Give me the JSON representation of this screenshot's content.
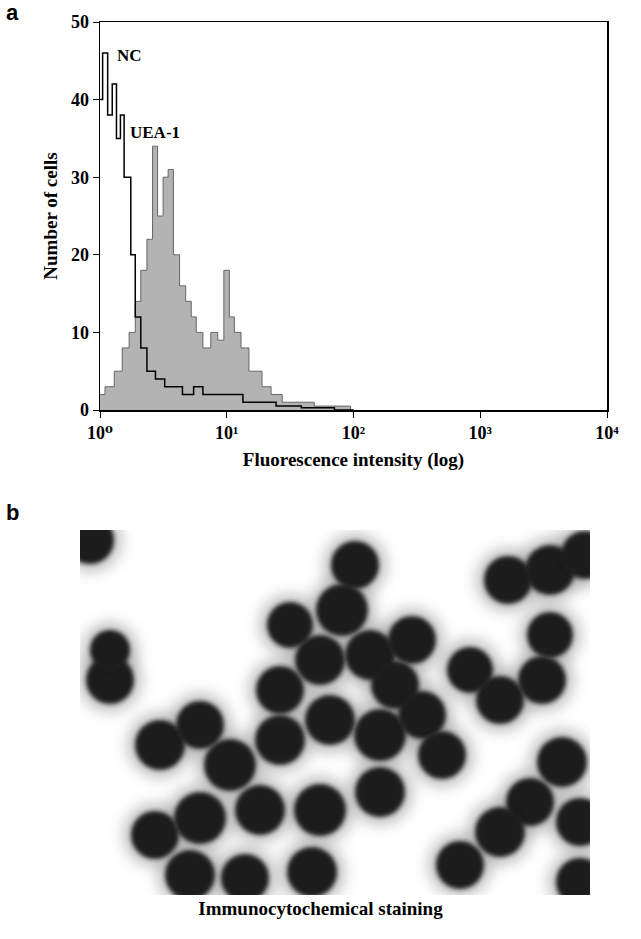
{
  "chart_data": {
    "type": "line",
    "xlabel": "Fluorescence intensity (log)",
    "ylabel": "Number of cells",
    "log": "x",
    "grid": false,
    "xlim": [
      1,
      10000
    ],
    "xticks": [
      {
        "value": 1,
        "label": "10⁰"
      },
      {
        "value": 10,
        "label": "10¹"
      },
      {
        "value": 100,
        "label": "10²"
      },
      {
        "value": 1000,
        "label": "10³"
      },
      {
        "value": 10000,
        "label": "10⁴"
      }
    ],
    "ylim": [
      0,
      50
    ],
    "yticks": [
      0,
      10,
      20,
      30,
      40,
      50
    ],
    "series": [
      {
        "name": "NC",
        "type": "line",
        "color": "#000000",
        "x": [
          1,
          1.1,
          1.2,
          1.3,
          1.4,
          1.5,
          1.6,
          1.7,
          1.8,
          2,
          2.2,
          2.5,
          3,
          3.5,
          4,
          5,
          6,
          7,
          8,
          10,
          12,
          15,
          20,
          30,
          50,
          100
        ],
        "values": [
          40,
          46,
          38,
          42,
          35,
          38,
          30,
          30,
          20,
          12,
          8,
          5,
          4,
          3,
          3,
          2,
          3,
          2,
          2,
          2,
          2,
          1,
          1,
          0.5,
          0.3,
          0
        ]
      },
      {
        "name": "UEA-1",
        "type": "area",
        "color": "#999999",
        "x": [
          1,
          1.2,
          1.4,
          1.6,
          1.8,
          2,
          2.2,
          2.5,
          2.7,
          3,
          3.3,
          3.6,
          4,
          4.5,
          5,
          5.5,
          6,
          7,
          8,
          9,
          10,
          11,
          12,
          14,
          16,
          18,
          20,
          25,
          30,
          40,
          60,
          90,
          100
        ],
        "values": [
          2,
          3,
          5,
          8,
          10,
          14,
          18,
          22,
          34,
          25,
          30,
          31,
          20,
          16,
          14,
          12,
          10,
          8,
          10,
          9,
          18,
          12,
          10,
          8,
          5,
          5,
          3,
          2,
          1,
          1,
          0.5,
          0.5,
          0
        ]
      }
    ]
  },
  "panels": [
    {
      "label": "a"
    },
    {
      "label": "b",
      "caption": "Immunocytochemical staining"
    }
  ]
}
